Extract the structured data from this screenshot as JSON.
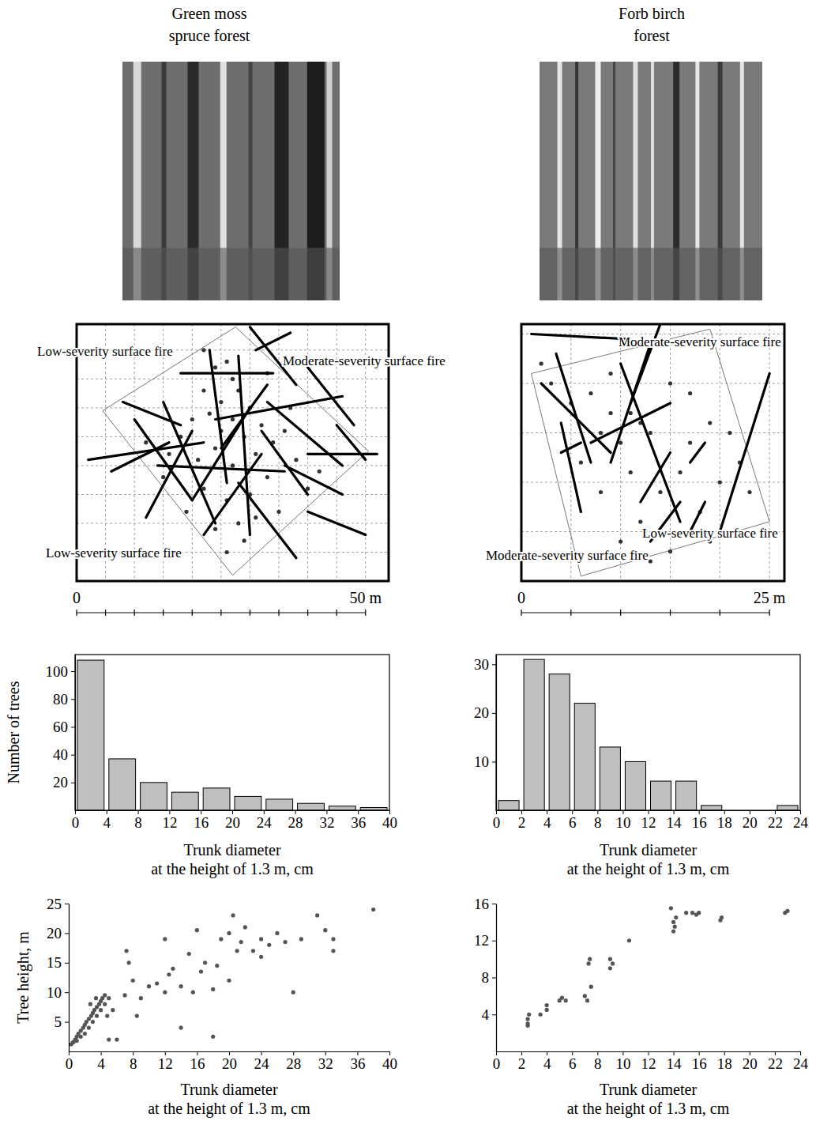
{
  "chart_data": [
    {
      "type": "map",
      "title": [
        "Green moss",
        "spruce forest"
      ],
      "xlim": [
        0,
        54
      ],
      "ylim": [
        0,
        44.5
      ],
      "xticks": [
        0,
        5,
        10,
        15,
        20,
        25,
        30,
        35,
        40,
        45,
        50
      ],
      "yticks": [
        0,
        5,
        10,
        15,
        20,
        25,
        30,
        35,
        40
      ],
      "grid": true,
      "tick_labels": false,
      "color": "#000000",
      "marker": "circle",
      "plot_boundary": [
        [
          27.5,
          44
        ],
        [
          50.5,
          22.5
        ],
        [
          27,
          1
        ],
        [
          4.5,
          29.5
        ]
      ],
      "logs": [
        [
          2,
          21,
          22,
          24
        ],
        [
          10,
          28,
          20,
          14
        ],
        [
          8,
          31,
          18,
          27
        ],
        [
          23,
          40,
          26,
          17
        ],
        [
          30,
          44,
          38,
          34
        ],
        [
          28,
          39,
          30,
          8
        ],
        [
          33,
          31,
          46,
          20
        ],
        [
          40,
          37,
          48,
          27
        ],
        [
          18,
          36,
          34,
          36
        ],
        [
          24,
          28,
          46,
          32
        ],
        [
          14,
          20,
          36,
          19
        ],
        [
          20,
          14,
          30,
          30
        ],
        [
          32,
          26,
          40,
          15
        ],
        [
          36,
          20,
          46,
          15
        ],
        [
          40,
          22,
          52,
          22
        ],
        [
          12,
          11,
          20,
          26
        ],
        [
          22,
          8,
          32,
          22
        ],
        [
          28,
          17,
          38,
          4
        ],
        [
          40,
          12,
          50,
          8
        ],
        [
          45,
          27,
          50,
          21
        ],
        [
          6,
          19,
          16,
          24
        ],
        [
          25,
          23,
          33,
          34
        ],
        [
          31,
          40,
          37,
          43
        ],
        [
          15,
          31,
          24,
          10
        ]
      ],
      "trees": {
        "x": [
          22,
          24,
          26,
          27,
          28,
          25,
          23,
          30,
          32,
          29,
          20,
          18,
          16,
          21,
          24,
          27,
          31,
          34,
          36,
          38,
          33,
          30,
          26,
          22,
          19,
          24,
          28,
          35,
          40,
          42,
          15,
          12,
          26,
          29,
          31,
          25,
          22,
          37,
          27,
          33
        ],
        "y": [
          40,
          37,
          38,
          35,
          33,
          31,
          29,
          30,
          27,
          25,
          28,
          25,
          22,
          21,
          23,
          20,
          22,
          24,
          26,
          21,
          18,
          15,
          14,
          16,
          12,
          9,
          10,
          12,
          16,
          19,
          18,
          24,
          5,
          7,
          11,
          26,
          33,
          30,
          28,
          36
        ]
      },
      "annotations": [
        "Low-severity surface fire",
        "Moderate-severity surface fire",
        "Low-severity surface fire"
      ],
      "scale_bar": {
        "ticks": [
          0,
          5,
          10,
          15,
          20,
          25,
          30,
          35,
          40,
          45,
          50
        ],
        "labels": [
          {
            "value": 0,
            "label": "0"
          },
          {
            "value": 50,
            "label": "50 m"
          }
        ]
      }
    },
    {
      "type": "map",
      "title": [
        "Forb birch",
        "forest"
      ],
      "xlim": [
        0,
        26.5
      ],
      "ylim": [
        0,
        26
      ],
      "xticks": [
        0,
        5,
        10,
        15,
        20,
        25
      ],
      "yticks": [
        0,
        5,
        10,
        15,
        20,
        25
      ],
      "grid": true,
      "tick_labels": false,
      "color": "#000000",
      "marker": "circle",
      "plot_boundary": [
        [
          1,
          21
        ],
        [
          19,
          25.5
        ],
        [
          25,
          6
        ],
        [
          6,
          0.5
        ]
      ],
      "logs": [
        [
          1,
          25,
          10.5,
          24.5
        ],
        [
          3.5,
          23,
          7,
          12
        ],
        [
          2,
          20,
          9,
          13
        ],
        [
          4,
          16,
          6,
          7
        ],
        [
          7,
          14,
          15,
          18
        ],
        [
          13,
          24,
          9,
          12
        ],
        [
          10,
          22,
          16,
          6
        ],
        [
          15,
          13,
          12,
          8
        ],
        [
          17,
          12,
          18.5,
          14
        ],
        [
          20,
          5,
          25,
          21
        ],
        [
          13,
          4,
          16,
          8
        ],
        [
          17,
          5,
          18.5,
          8
        ],
        [
          14,
          26,
          11,
          18
        ],
        [
          4,
          13,
          6,
          14
        ]
      ],
      "trees": {
        "x": [
          3,
          5,
          2,
          7,
          9,
          11,
          12,
          13,
          10,
          15,
          17,
          19,
          21,
          22,
          16,
          14,
          12,
          8,
          6,
          10,
          18,
          20,
          23,
          15,
          13,
          9,
          11,
          17,
          19,
          8
        ],
        "y": [
          20,
          18,
          22,
          19,
          21,
          17,
          16,
          15,
          14,
          20,
          19,
          16,
          15,
          12,
          11,
          9,
          6,
          9,
          12,
          4,
          7,
          10,
          9,
          3,
          2,
          17,
          11,
          14,
          4,
          15
        ]
      },
      "annotations": [
        "Moderate-severity surface fire",
        "Low-severity surface fire",
        "Moderate-severity surface fire"
      ],
      "scale_bar": {
        "ticks": [
          0,
          5,
          10,
          15,
          20,
          25
        ],
        "labels": [
          {
            "value": 0,
            "label": "0"
          },
          {
            "value": 25,
            "label": "25 m"
          }
        ]
      }
    },
    {
      "type": "histogram",
      "ylabel": "Number of trees",
      "xlabel": [
        "Trunk diameter",
        "at the height of 1.3 m, cm"
      ],
      "bins": [
        0,
        4,
        8,
        12,
        16,
        20,
        24,
        28,
        32,
        36,
        40
      ],
      "values": [
        108,
        37,
        20,
        13,
        16,
        10,
        8,
        5,
        3,
        2
      ],
      "color": "#bfbfbf",
      "xlim": [
        0,
        40
      ],
      "xticks": [
        0,
        4,
        8,
        12,
        16,
        20,
        24,
        28,
        32,
        36,
        40
      ],
      "ylim": [
        0,
        112
      ],
      "yticks": [
        20,
        40,
        60,
        80,
        100
      ]
    },
    {
      "type": "histogram",
      "xlabel": [
        "Trunk diameter",
        "at the height of 1.3 m, cm"
      ],
      "bins": [
        0,
        2,
        4,
        6,
        8,
        10,
        12,
        14,
        16,
        18,
        20,
        22,
        24
      ],
      "values": [
        2,
        31,
        28,
        22,
        13,
        10,
        6,
        6,
        1,
        0,
        0,
        1
      ],
      "color": "#bfbfbf",
      "xlim": [
        0,
        24
      ],
      "xticks": [
        0,
        2,
        4,
        6,
        8,
        10,
        12,
        14,
        16,
        18,
        20,
        22,
        24
      ],
      "ylim": [
        0,
        32
      ],
      "yticks": [
        10,
        20,
        30
      ]
    },
    {
      "type": "scatter",
      "ylabel": "Tree height, m",
      "xlabel": [
        "Trunk diameter",
        "at the height of 1.3 m, cm"
      ],
      "color": "#555555",
      "marker": "circle",
      "x": [
        0.5,
        0.8,
        1,
        1.2,
        1.5,
        1.8,
        2,
        2.2,
        2.5,
        2.8,
        3,
        3.2,
        3.5,
        3.8,
        4,
        4.2,
        4.5,
        1,
        1.5,
        2,
        2.5,
        3,
        3.5,
        4,
        4.5,
        0.3,
        0.6,
        2.7,
        3.4,
        4.8,
        5,
        5.5,
        6,
        5,
        7,
        7.2,
        7.5,
        8,
        8.5,
        9,
        10,
        11,
        12,
        12,
        12.5,
        13,
        14,
        14,
        15,
        15.5,
        16,
        16.5,
        17,
        18,
        18,
        18.5,
        19,
        20,
        20,
        20.5,
        21,
        21.5,
        22,
        23,
        24,
        24,
        25,
        26,
        27,
        28,
        29,
        31,
        32,
        33,
        33,
        38
      ],
      "values": [
        1.5,
        2,
        2.5,
        3,
        3.5,
        4,
        4.5,
        5,
        5.5,
        6,
        6.5,
        7,
        7.5,
        8,
        8.5,
        9,
        9.5,
        1.8,
        2.5,
        3,
        4,
        5,
        6,
        7,
        8,
        1.2,
        1.6,
        8,
        9,
        6,
        9,
        7,
        2,
        2,
        9.5,
        17,
        15,
        12,
        6,
        9,
        11,
        11.5,
        19,
        10,
        13,
        14,
        11,
        4,
        16.5,
        10,
        20.5,
        13.5,
        15,
        10.5,
        2.5,
        14.5,
        19,
        20,
        12,
        23,
        17,
        18.5,
        21,
        17,
        16,
        19,
        18,
        20,
        18.5,
        10,
        19,
        23,
        20.5,
        19,
        17,
        24
      ],
      "xlim": [
        0,
        40
      ],
      "xticks": [
        0,
        4,
        8,
        12,
        16,
        20,
        24,
        28,
        32,
        36,
        40
      ],
      "ylim": [
        0,
        25
      ],
      "yticks": [
        5,
        10,
        15,
        20,
        25
      ]
    },
    {
      "type": "scatter",
      "xlabel": [
        "Trunk diameter",
        "at the height of 1.3 m, cm"
      ],
      "color": "#555555",
      "marker": "circle",
      "x": [
        2.5,
        2.5,
        2.6,
        2.5,
        3.5,
        4,
        4,
        5,
        5.2,
        5.5,
        7,
        7.2,
        7.5,
        7.3,
        7.4,
        9,
        9.2,
        9,
        10.5,
        13.8,
        14,
        14.1,
        14,
        14.2,
        15,
        15.5,
        16,
        15.8,
        17.8,
        17.7,
        22.8,
        23
      ],
      "values": [
        3,
        3.5,
        4,
        2.8,
        4,
        4.5,
        5,
        5.5,
        5.8,
        5.5,
        6,
        5.5,
        7,
        9.5,
        10,
        9,
        9.5,
        10,
        12,
        15.5,
        14,
        13.5,
        13,
        14.5,
        15,
        15,
        15,
        14.8,
        14.5,
        14.2,
        15,
        15.2
      ],
      "xlim": [
        0,
        24
      ],
      "xticks": [
        0,
        2,
        4,
        6,
        8,
        10,
        12,
        14,
        16,
        18,
        20,
        22,
        24
      ],
      "ylim": [
        0,
        16
      ],
      "yticks": [
        4,
        8,
        12,
        16
      ]
    }
  ]
}
